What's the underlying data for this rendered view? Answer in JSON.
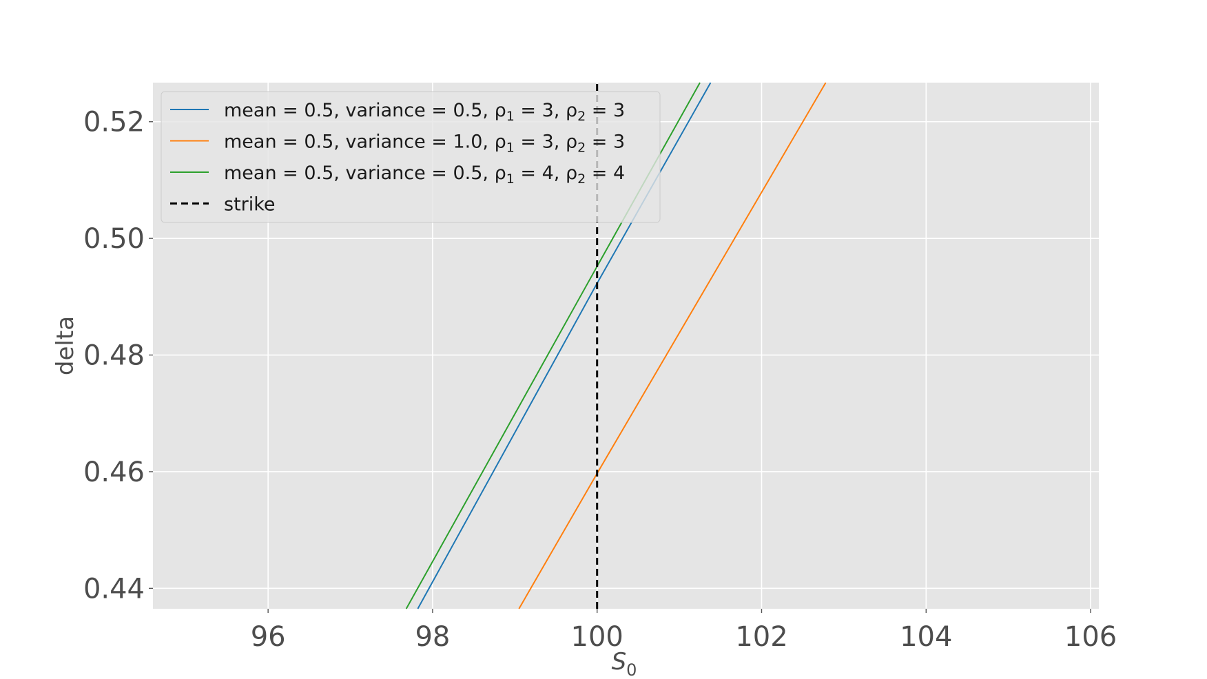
{
  "chart_data": {
    "type": "line",
    "title": "",
    "xlabel": "S",
    "xlabel_sub": "0",
    "ylabel": "delta",
    "xlim": [
      94.6,
      106.1
    ],
    "ylim": [
      0.4365,
      0.5267
    ],
    "xticks": [
      96,
      98,
      100,
      102,
      104,
      106
    ],
    "yticks": [
      0.44,
      0.46,
      0.48,
      0.5,
      0.52
    ],
    "xtick_labels": [
      "96",
      "98",
      "100",
      "102",
      "104",
      "106"
    ],
    "ytick_labels": [
      "0.44",
      "0.46",
      "0.48",
      "0.50",
      "0.52"
    ],
    "grid": true,
    "legend_position": "upper-left",
    "series": [
      {
        "name": "mean = 0.5, variance = 0.5, ρ₁ = 3,  ρ₂ = 3",
        "legend_parts": [
          "mean = 0.5, variance = 0.5, ρ",
          "1",
          " = 3,  ρ",
          "2",
          " = 3"
        ],
        "color": "#1f77b4",
        "style": "solid",
        "x": [
          97.82,
          100.0,
          101.38
        ],
        "y": [
          0.4365,
          0.4923,
          0.5267
        ]
      },
      {
        "name": "mean = 0.5, variance = 1.0, ρ₁ = 3,  ρ₂ = 3",
        "legend_parts": [
          "mean = 0.5, variance = 1.0, ρ",
          "1",
          " = 3,  ρ",
          "2",
          " = 3"
        ],
        "color": "#ff7f0e",
        "style": "solid",
        "x": [
          99.05,
          100.0,
          102.78
        ],
        "y": [
          0.4365,
          0.4597,
          0.5267
        ]
      },
      {
        "name": "mean = 0.5, variance = 0.5, ρ₁ = 4,  ρ₂ = 4",
        "legend_parts": [
          "mean = 0.5, variance = 0.5, ρ",
          "1",
          " = 4,  ρ",
          "2",
          " = 4"
        ],
        "color": "#2ca02c",
        "style": "solid",
        "x": [
          97.68,
          100.0,
          101.25
        ],
        "y": [
          0.4365,
          0.4952,
          0.5267
        ]
      },
      {
        "name": "strike",
        "legend_parts": [
          "strike"
        ],
        "color": "#000000",
        "style": "dashed",
        "x": [
          100,
          100
        ],
        "y": [
          0.4365,
          0.5267
        ]
      }
    ]
  }
}
